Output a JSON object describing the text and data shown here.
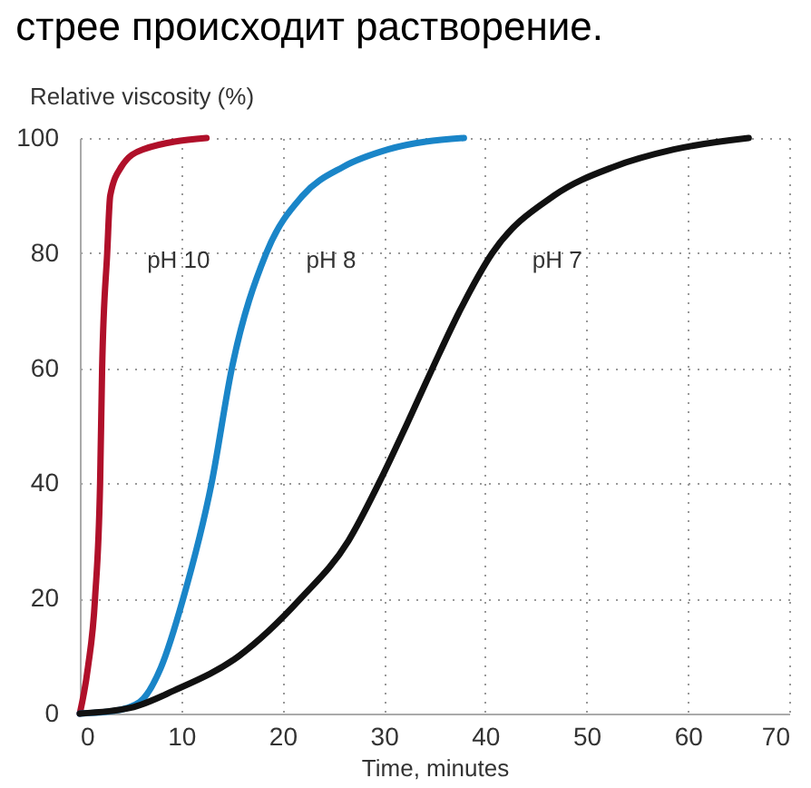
{
  "chart_data": {
    "type": "line",
    "title": "стрее происходит растворение.",
    "xlabel": "Time, minutes",
    "ylabel": "Relative viscosity (%)",
    "xlim": [
      0,
      70
    ],
    "xticks": [
      0,
      10,
      20,
      30,
      40,
      50,
      60,
      70
    ],
    "ylim": [
      0,
      100
    ],
    "yticks": [
      0,
      20,
      40,
      60,
      80,
      100
    ],
    "grid": true,
    "marker": "none",
    "line_style": "solid",
    "series": [
      {
        "name": "pH 10",
        "color": "#b0102a",
        "x": [
          0,
          0.8,
          1.5,
          2.0,
          2.2,
          2.7,
          3.0,
          4.1,
          6.2,
          12.5
        ],
        "values": [
          0,
          8,
          20,
          40,
          60,
          80,
          90,
          95,
          98,
          100
        ]
      },
      {
        "name": "pH 8",
        "color": "#1a85c8",
        "x": [
          0,
          3.5,
          5.9,
          8,
          10.2,
          13,
          15,
          18.4,
          22,
          26,
          30.4,
          37.9
        ],
        "values": [
          0,
          0.5,
          2,
          8,
          20,
          40,
          60,
          80,
          90,
          95,
          98,
          100
        ]
      },
      {
        "name": "pH 7",
        "color": "#111111",
        "x": [
          0,
          5,
          9.3,
          15.7,
          21.8,
          26.5,
          29.5,
          32.2,
          34.8,
          37.5,
          40.7,
          46.8,
          52.7,
          58.6,
          66
        ],
        "values": [
          0,
          1,
          4,
          10,
          20,
          30,
          40,
          50,
          60,
          70,
          80,
          90,
          95,
          98,
          100
        ]
      }
    ]
  }
}
